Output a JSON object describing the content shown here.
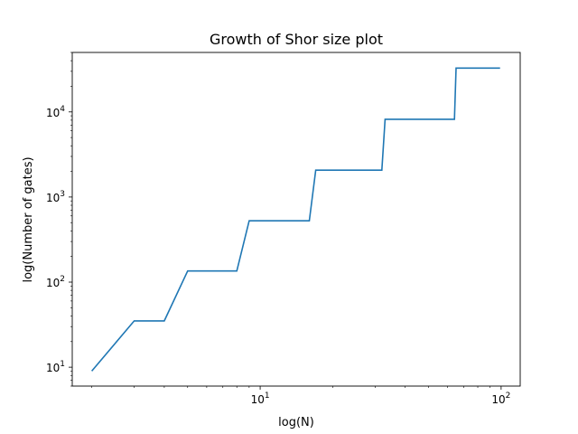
{
  "chart_data": {
    "type": "line",
    "title": "Growth of Shor size plot",
    "xlabel": "log(N)",
    "ylabel": "log(Number of gates)",
    "xscale": "log",
    "yscale": "log",
    "xlim": [
      1.66,
      120
    ],
    "ylim": [
      6,
      50000
    ],
    "x_ticks": [
      {
        "base": "10",
        "exp": "1",
        "value": 10
      },
      {
        "base": "10",
        "exp": "2",
        "value": 100
      }
    ],
    "y_ticks": [
      {
        "base": "10",
        "exp": "1",
        "value": 10
      },
      {
        "base": "10",
        "exp": "2",
        "value": 100
      },
      {
        "base": "10",
        "exp": "3",
        "value": 1000
      },
      {
        "base": "10",
        "exp": "4",
        "value": 10000
      }
    ],
    "grid": false,
    "line_color": "#1f77b4",
    "series": [
      {
        "x": [
          2,
          3,
          4,
          5,
          8,
          9,
          16,
          17,
          32,
          33,
          64,
          65,
          99
        ],
        "y": [
          9,
          35,
          35,
          135,
          135,
          525,
          525,
          2067,
          2067,
          8200,
          8200,
          32770,
          32770
        ]
      }
    ]
  }
}
